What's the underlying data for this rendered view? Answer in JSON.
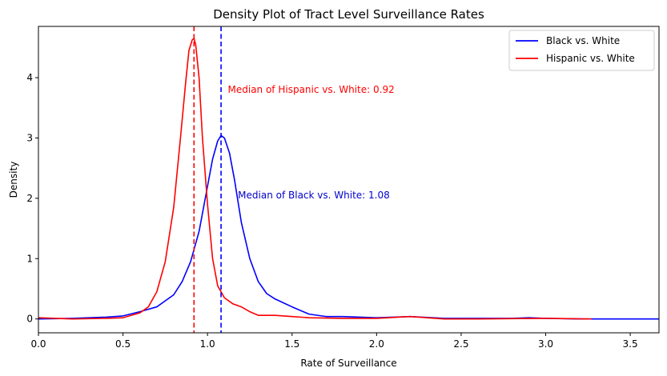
{
  "chart_data": {
    "type": "line",
    "title": "Density Plot of Tract Level Surveillance Rates",
    "xlabel": "Rate of Surveillance",
    "ylabel": "Density",
    "xlim": [
      0.0,
      3.67
    ],
    "ylim": [
      -0.23,
      4.85
    ],
    "xticks": [
      0.0,
      0.5,
      1.0,
      1.5,
      2.0,
      2.5,
      3.0,
      3.5
    ],
    "xtick_labels": [
      "0.0",
      "0.5",
      "1.0",
      "1.5",
      "2.0",
      "2.5",
      "3.0",
      "3.5"
    ],
    "yticks": [
      0,
      1,
      2,
      3,
      4
    ],
    "ytick_labels": [
      "0",
      "1",
      "2",
      "3",
      "4"
    ],
    "grid": false,
    "legend_position": "top-right",
    "series": [
      {
        "name": "Black vs. White",
        "color": "#0000ff",
        "x": [
          0.0,
          0.2,
          0.4,
          0.5,
          0.6,
          0.7,
          0.8,
          0.85,
          0.9,
          0.95,
          1.0,
          1.03,
          1.06,
          1.08,
          1.1,
          1.13,
          1.16,
          1.2,
          1.25,
          1.3,
          1.35,
          1.4,
          1.5,
          1.6,
          1.7,
          1.8,
          2.0,
          2.2,
          2.4,
          2.6,
          2.8,
          2.9,
          3.0,
          3.2,
          3.4,
          3.67
        ],
        "y": [
          0.0,
          0.01,
          0.03,
          0.05,
          0.12,
          0.2,
          0.4,
          0.62,
          0.95,
          1.45,
          2.2,
          2.65,
          2.95,
          3.04,
          3.0,
          2.75,
          2.3,
          1.6,
          1.0,
          0.62,
          0.42,
          0.33,
          0.2,
          0.08,
          0.04,
          0.04,
          0.02,
          0.04,
          0.01,
          0.01,
          0.01,
          0.02,
          0.01,
          0.0,
          0.0,
          0.0
        ]
      },
      {
        "name": "Hispanic vs. White",
        "color": "#ff0000",
        "x": [
          0.0,
          0.2,
          0.4,
          0.5,
          0.6,
          0.65,
          0.7,
          0.75,
          0.8,
          0.84,
          0.87,
          0.89,
          0.91,
          0.92,
          0.93,
          0.95,
          0.97,
          1.0,
          1.03,
          1.06,
          1.1,
          1.15,
          1.2,
          1.25,
          1.3,
          1.4,
          1.5,
          1.6,
          1.8,
          2.0,
          2.2,
          2.4,
          2.6,
          3.0,
          3.27
        ],
        "y": [
          0.02,
          0.0,
          0.01,
          0.02,
          0.1,
          0.2,
          0.45,
          0.95,
          1.85,
          3.0,
          3.9,
          4.45,
          4.63,
          4.65,
          4.55,
          4.0,
          3.0,
          1.9,
          1.0,
          0.55,
          0.35,
          0.25,
          0.2,
          0.12,
          0.06,
          0.06,
          0.04,
          0.02,
          0.01,
          0.01,
          0.04,
          0.0,
          0.0,
          0.01,
          0.0
        ]
      }
    ],
    "vlines": [
      {
        "x": 0.92,
        "color": "#ff0000",
        "style": "dashed"
      },
      {
        "x": 1.08,
        "color": "#0000ff",
        "style": "dashed"
      }
    ],
    "annotations": [
      {
        "text": "Median of Hispanic vs. White: 0.92",
        "x": 1.12,
        "y": 3.8,
        "color": "#ff0000"
      },
      {
        "text": "Median of Black vs. White: 1.08",
        "x": 1.18,
        "y": 2.05,
        "color": "#0000cd"
      }
    ]
  }
}
